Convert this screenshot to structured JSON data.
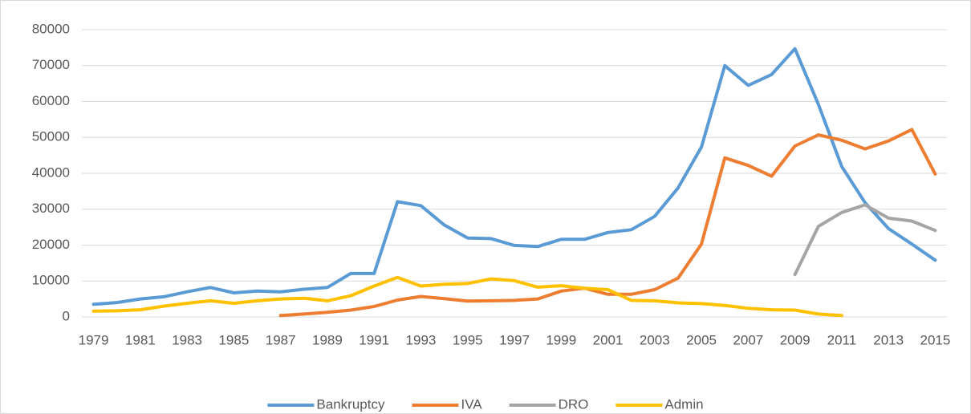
{
  "chart_data": {
    "type": "line",
    "categories": [
      "1979",
      null,
      "1981",
      null,
      "1983",
      null,
      "1985",
      null,
      "1987",
      null,
      "1989",
      null,
      "1991",
      null,
      "1993",
      null,
      "1995",
      null,
      "1997",
      null,
      "1999",
      null,
      "2001",
      null,
      "2003",
      null,
      "2005",
      null,
      "2007",
      null,
      "2009",
      null,
      "2011",
      null,
      "2013",
      null,
      "2015"
    ],
    "series": [
      {
        "name": "Bankruptcy",
        "color": "#5b9bd5",
        "values": [
          3500,
          4000,
          5000,
          5600,
          7000,
          8200,
          6700,
          7200,
          7000,
          7700,
          8200,
          12100,
          12100,
          32100,
          31000,
          25600,
          22000,
          21800,
          19900,
          19600,
          21600,
          21600,
          23500,
          24300,
          28000,
          35900,
          47300,
          70000,
          64500,
          67500,
          74700,
          59200,
          41900,
          31800,
          24600,
          20300,
          15800
        ]
      },
      {
        "name": "IVA",
        "color": "#ed7d31",
        "values": [
          null,
          null,
          null,
          null,
          null,
          null,
          null,
          null,
          400,
          800,
          1300,
          1900,
          2900,
          4700,
          5700,
          5100,
          4400,
          4500,
          4600,
          5000,
          7200,
          8000,
          6300,
          6300,
          7600,
          10800,
          20300,
          44300,
          42200,
          39200,
          47600,
          50700,
          49200,
          46800,
          49000,
          52200,
          39800
        ]
      },
      {
        "name": "DRO",
        "color": "#a5a5a5",
        "values": [
          null,
          null,
          null,
          null,
          null,
          null,
          null,
          null,
          null,
          null,
          null,
          null,
          null,
          null,
          null,
          null,
          null,
          null,
          null,
          null,
          null,
          null,
          null,
          null,
          null,
          null,
          null,
          null,
          null,
          null,
          11800,
          25200,
          29100,
          31200,
          27500,
          26700,
          24100
        ]
      },
      {
        "name": "Admin",
        "color": "#ffc000",
        "values": [
          1600,
          1700,
          2000,
          3000,
          3800,
          4500,
          3800,
          4500,
          5000,
          5200,
          4500,
          5900,
          8600,
          11000,
          8600,
          9100,
          9300,
          10600,
          10100,
          8300,
          8700,
          8000,
          7600,
          4600,
          4500,
          3900,
          3700,
          3200,
          2400,
          2000,
          1900,
          800,
          400,
          null,
          null,
          null,
          null
        ]
      }
    ],
    "ylim": [
      0,
      80000
    ],
    "yticks": [
      0,
      10000,
      20000,
      30000,
      40000,
      50000,
      60000,
      70000,
      80000
    ],
    "grid": true,
    "legend": "bottom"
  }
}
